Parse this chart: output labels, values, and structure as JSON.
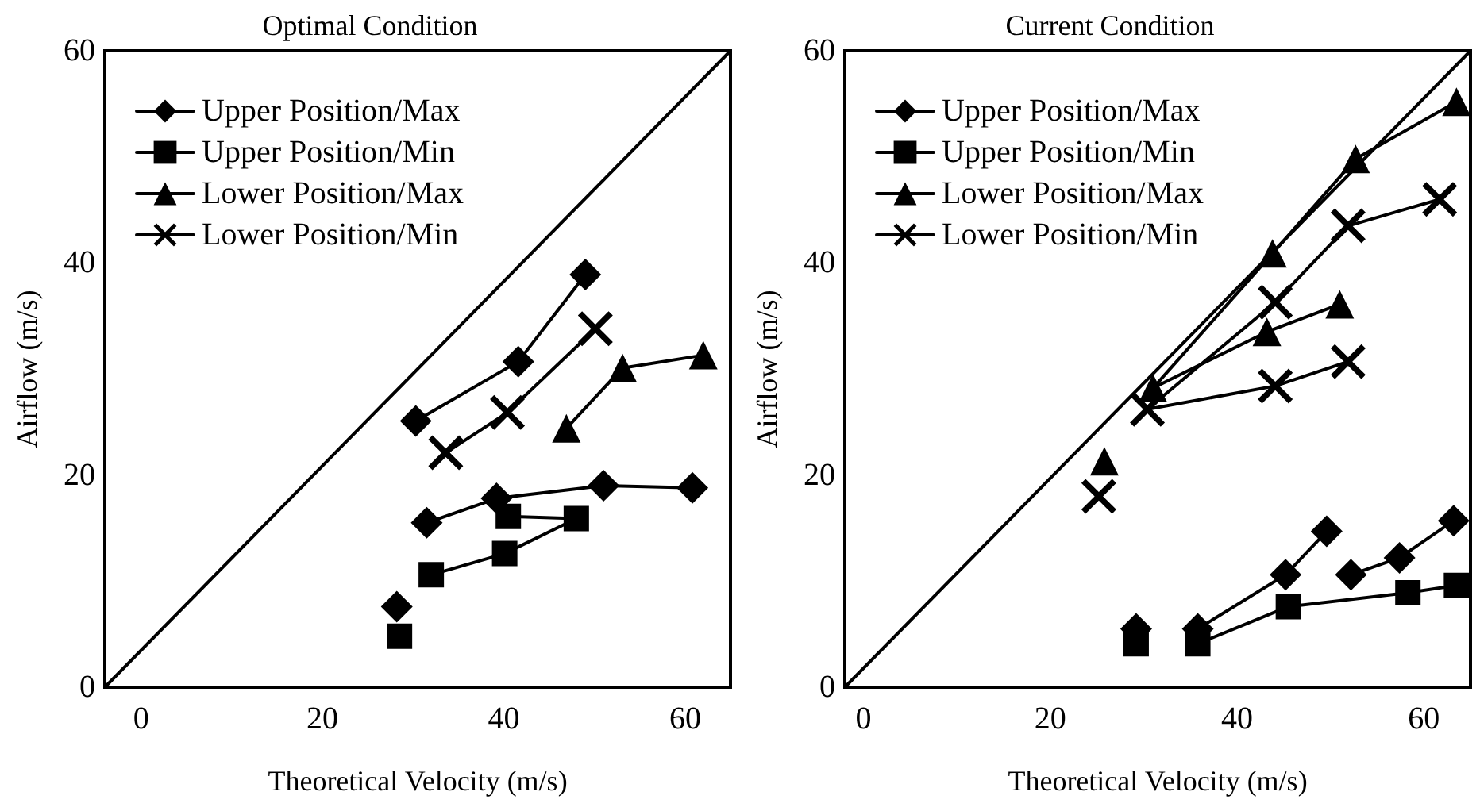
{
  "chart_data": [
    {
      "type": "line",
      "title": "Optimal Condition",
      "xlabel": "Theoretical Velocity (m/s)",
      "ylabel": "Airflow (m/s)",
      "xlim": [
        -4,
        65
      ],
      "ylim": [
        0,
        60
      ],
      "xticks": [
        0,
        20,
        40,
        60
      ],
      "yticks": [
        0,
        20,
        40,
        60
      ],
      "grid": false,
      "legend": "top left",
      "line_style": "solid",
      "series": [
        {
          "name": "Upper Position/Max",
          "color": "#000000",
          "marker": "diamond",
          "x": [
            28.2,
            null,
            30.3,
            41.6,
            49.0,
            null,
            31.5,
            39.2,
            51.0,
            60.8
          ],
          "values": [
            7.6,
            null,
            25.1,
            30.7,
            38.9,
            null,
            15.5,
            17.8,
            19.0,
            18.8
          ]
        },
        {
          "name": "Upper Position/Min",
          "color": "#000000",
          "marker": "square",
          "x": [
            28.5,
            null,
            32.0,
            40.1,
            48.0,
            40.5
          ],
          "values": [
            4.8,
            null,
            10.6,
            12.6,
            15.9,
            16.1
          ]
        },
        {
          "name": "Lower Position/Max",
          "color": "#000000",
          "marker": "triangle",
          "x": [
            46.9,
            53.1,
            62.0
          ],
          "values": [
            24.4,
            30.1,
            31.3
          ]
        },
        {
          "name": "Lower Position/Min",
          "color": "#000000",
          "marker": "cross",
          "x": [
            33.6,
            40.4,
            50.1
          ],
          "values": [
            22.1,
            25.9,
            33.8
          ]
        },
        {
          "color": "#000000",
          "marker": "none",
          "x": [
            -4,
            65
          ],
          "values": [
            0,
            60
          ]
        }
      ]
    },
    {
      "type": "line",
      "title": "Current Condition",
      "xlabel": "Theoretical Velocity (m/s)",
      "ylabel": "Airflow (m/s)",
      "xlim": [
        -2,
        65
      ],
      "ylim": [
        0,
        60
      ],
      "xticks": [
        0,
        20,
        40,
        60
      ],
      "yticks": [
        0,
        20,
        40,
        60
      ],
      "grid": false,
      "legend": "top left",
      "line_style": "solid",
      "series": [
        {
          "name": "Upper Position/Max",
          "color": "#000000",
          "marker": "diamond",
          "x": [
            29.2,
            null,
            35.8,
            45.2,
            49.6,
            null,
            52.2,
            57.4,
            63.2
          ],
          "values": [
            5.5,
            null,
            5.5,
            10.6,
            14.7,
            null,
            10.6,
            12.2,
            15.7
          ]
        },
        {
          "name": "Upper Position/Min",
          "color": "#000000",
          "marker": "square",
          "x": [
            29.2,
            null,
            35.8,
            45.5,
            58.3,
            63.5
          ],
          "values": [
            4.1,
            null,
            4.1,
            7.6,
            8.9,
            9.6
          ]
        },
        {
          "name": "Lower Position/Max",
          "color": "#000000",
          "marker": "triangle",
          "x": [
            25.8,
            null,
            51.0,
            43.2,
            31.0,
            43.8,
            52.7,
            63.5
          ],
          "values": [
            21.3,
            null,
            36.1,
            33.5,
            28.2,
            40.9,
            49.8,
            55.2
          ]
        },
        {
          "name": "Lower Position/Min",
          "color": "#000000",
          "marker": "cross",
          "x": [
            25.2,
            null,
            51.9,
            44.1,
            30.4,
            44.1,
            51.9,
            61.7
          ],
          "values": [
            18.0,
            null,
            30.7,
            28.4,
            26.2,
            36.3,
            43.5,
            46.0
          ]
        },
        {
          "color": "#000000",
          "marker": "none",
          "x": [
            -2,
            65
          ],
          "values": [
            0,
            60
          ]
        }
      ]
    }
  ]
}
